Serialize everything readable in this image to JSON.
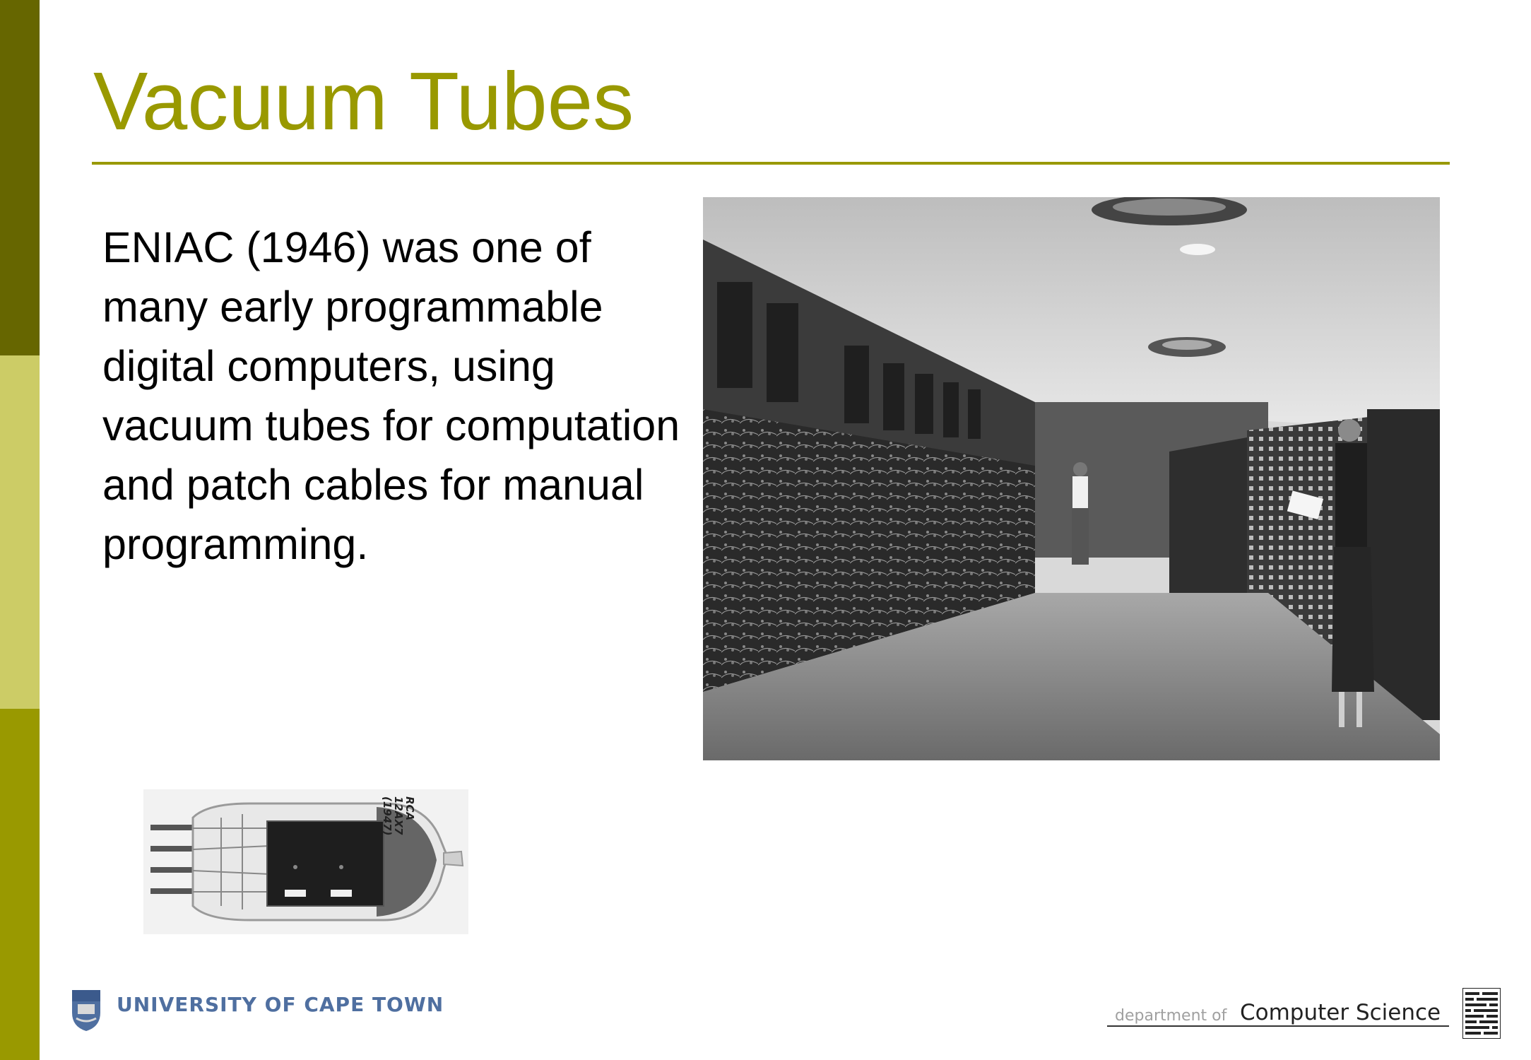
{
  "slide": {
    "title": "Vacuum Tubes",
    "body": "ENIAC (1946) was one of many early programmable digital computers, using vacuum tubes for computation and patch cables for manual programming."
  },
  "images": {
    "eniac_photo": "ENIAC room photograph",
    "tube_photo": "vacuum tube photograph",
    "tube_label": "RCA\n12AX7\n(1947)"
  },
  "footer": {
    "university": "UNIVERSITY OF CAPE TOWN",
    "dept_prefix": "department of",
    "dept_name": "Computer Science"
  },
  "colors": {
    "accent": "#999900",
    "bar_dark": "#666600",
    "bar_light": "#cccc66",
    "uct_blue": "#4f6fa0"
  }
}
